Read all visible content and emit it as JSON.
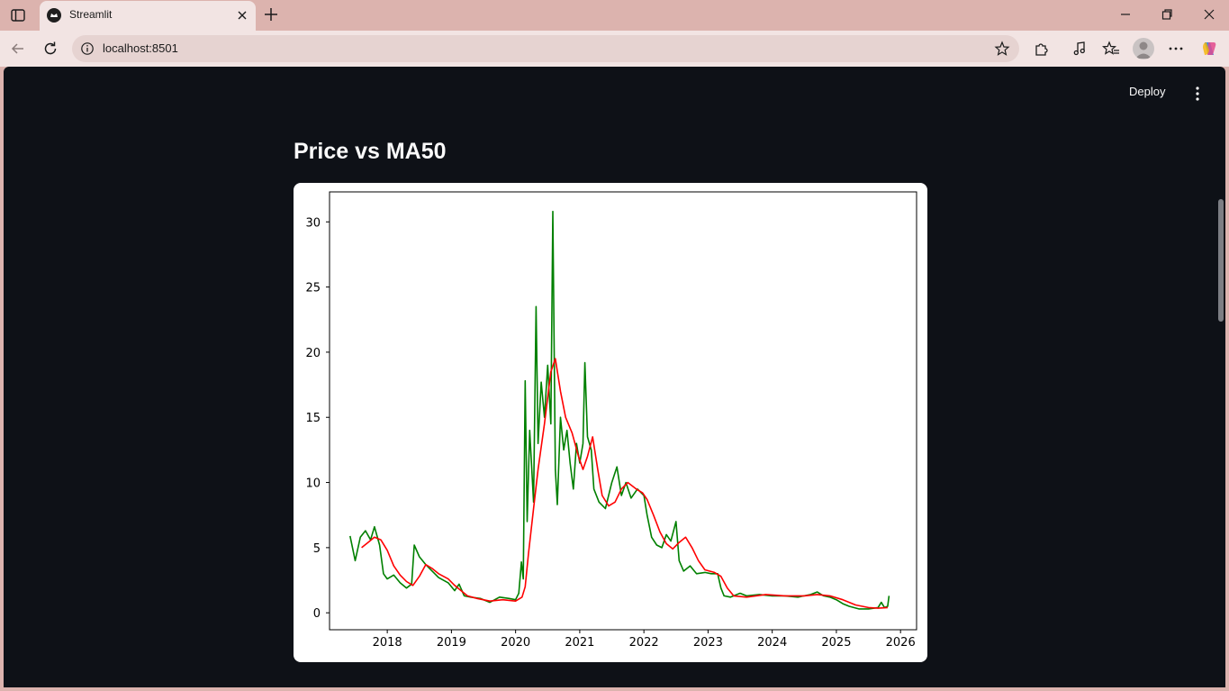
{
  "browser": {
    "tab_title": "Streamlit",
    "url": "localhost:8501"
  },
  "icons": {
    "sidebar_toggle": "sidebar-toggle-icon",
    "favicon": "streamlit-crown-icon",
    "tab_close": "close-icon",
    "new_tab": "plus-icon",
    "back": "arrow-left-icon",
    "reload": "reload-icon",
    "site_info": "info-icon",
    "favorite": "star-icon",
    "extensions": "puzzle-icon",
    "reading": "music-note-icon",
    "favorites": "favorites-icon",
    "profile": "avatar-icon",
    "more": "more-horizontal-icon",
    "copilot": "copilot-icon"
  },
  "app": {
    "deploy_label": "Deploy",
    "title": "Price vs MA50"
  },
  "colors": {
    "app_bg": "#0e1117",
    "price_line": "#008000",
    "ma_line": "#ff0000"
  },
  "chart_data": {
    "type": "line",
    "title": "",
    "xlabel": "",
    "ylabel": "",
    "xlim": [
      2017.1,
      2026.25
    ],
    "ylim": [
      -1.3,
      32.3
    ],
    "x_ticks": [
      "2018",
      "2019",
      "2020",
      "2021",
      "2022",
      "2023",
      "2024",
      "2025",
      "2026"
    ],
    "y_ticks": [
      "0",
      "5",
      "10",
      "15",
      "20",
      "25",
      "30"
    ],
    "grid": false,
    "legend": "none",
    "series": [
      {
        "color": "#008000",
        "points": [
          [
            2017.42,
            5.9
          ],
          [
            2017.5,
            4.0
          ],
          [
            2017.58,
            5.8
          ],
          [
            2017.66,
            6.3
          ],
          [
            2017.74,
            5.6
          ],
          [
            2017.8,
            6.6
          ],
          [
            2017.88,
            5.2
          ],
          [
            2017.94,
            3.0
          ],
          [
            2018.0,
            2.6
          ],
          [
            2018.1,
            2.9
          ],
          [
            2018.2,
            2.3
          ],
          [
            2018.3,
            1.9
          ],
          [
            2018.38,
            2.2
          ],
          [
            2018.42,
            5.2
          ],
          [
            2018.5,
            4.3
          ],
          [
            2018.6,
            3.7
          ],
          [
            2018.7,
            3.2
          ],
          [
            2018.8,
            2.7
          ],
          [
            2018.95,
            2.3
          ],
          [
            2019.05,
            1.7
          ],
          [
            2019.12,
            2.2
          ],
          [
            2019.2,
            1.3
          ],
          [
            2019.3,
            1.2
          ],
          [
            2019.45,
            1.1
          ],
          [
            2019.6,
            0.8
          ],
          [
            2019.75,
            1.2
          ],
          [
            2019.9,
            1.1
          ],
          [
            2020.0,
            1.0
          ],
          [
            2020.05,
            1.5
          ],
          [
            2020.09,
            3.9
          ],
          [
            2020.12,
            2.6
          ],
          [
            2020.15,
            17.8
          ],
          [
            2020.18,
            7.0
          ],
          [
            2020.22,
            14.0
          ],
          [
            2020.28,
            8.5
          ],
          [
            2020.32,
            23.5
          ],
          [
            2020.35,
            13.0
          ],
          [
            2020.4,
            17.7
          ],
          [
            2020.45,
            15.0
          ],
          [
            2020.5,
            19.0
          ],
          [
            2020.55,
            14.5
          ],
          [
            2020.58,
            30.8
          ],
          [
            2020.62,
            11.0
          ],
          [
            2020.65,
            8.3
          ],
          [
            2020.7,
            15.0
          ],
          [
            2020.75,
            12.5
          ],
          [
            2020.8,
            14.0
          ],
          [
            2020.85,
            11.5
          ],
          [
            2020.9,
            9.5
          ],
          [
            2020.95,
            13.0
          ],
          [
            2021.0,
            11.5
          ],
          [
            2021.05,
            13.0
          ],
          [
            2021.08,
            19.2
          ],
          [
            2021.12,
            13.5
          ],
          [
            2021.18,
            12.5
          ],
          [
            2021.22,
            9.5
          ],
          [
            2021.3,
            8.5
          ],
          [
            2021.4,
            8.0
          ],
          [
            2021.5,
            10.0
          ],
          [
            2021.58,
            11.2
          ],
          [
            2021.65,
            9.0
          ],
          [
            2021.72,
            10.0
          ],
          [
            2021.8,
            8.8
          ],
          [
            2021.9,
            9.5
          ],
          [
            2022.0,
            9.0
          ],
          [
            2022.05,
            7.5
          ],
          [
            2022.12,
            5.8
          ],
          [
            2022.2,
            5.2
          ],
          [
            2022.28,
            5.0
          ],
          [
            2022.35,
            6.0
          ],
          [
            2022.42,
            5.5
          ],
          [
            2022.5,
            7.0
          ],
          [
            2022.55,
            4.0
          ],
          [
            2022.62,
            3.2
          ],
          [
            2022.72,
            3.6
          ],
          [
            2022.82,
            3.0
          ],
          [
            2022.95,
            3.1
          ],
          [
            2023.05,
            3.0
          ],
          [
            2023.15,
            3.0
          ],
          [
            2023.2,
            1.9
          ],
          [
            2023.25,
            1.3
          ],
          [
            2023.35,
            1.2
          ],
          [
            2023.5,
            1.5
          ],
          [
            2023.6,
            1.3
          ],
          [
            2023.8,
            1.4
          ],
          [
            2024.0,
            1.3
          ],
          [
            2024.2,
            1.3
          ],
          [
            2024.4,
            1.2
          ],
          [
            2024.6,
            1.4
          ],
          [
            2024.7,
            1.6
          ],
          [
            2024.8,
            1.3
          ],
          [
            2024.9,
            1.2
          ],
          [
            2025.0,
            1.0
          ],
          [
            2025.1,
            0.7
          ],
          [
            2025.2,
            0.5
          ],
          [
            2025.35,
            0.3
          ],
          [
            2025.5,
            0.3
          ],
          [
            2025.65,
            0.4
          ],
          [
            2025.7,
            0.8
          ],
          [
            2025.75,
            0.4
          ],
          [
            2025.8,
            0.5
          ],
          [
            2025.82,
            1.3
          ]
        ]
      },
      {
        "color": "#ff0000",
        "points": [
          [
            2017.6,
            5.0
          ],
          [
            2017.7,
            5.4
          ],
          [
            2017.8,
            5.8
          ],
          [
            2017.9,
            5.6
          ],
          [
            2018.0,
            4.8
          ],
          [
            2018.1,
            3.6
          ],
          [
            2018.2,
            2.9
          ],
          [
            2018.3,
            2.4
          ],
          [
            2018.4,
            2.1
          ],
          [
            2018.5,
            2.8
          ],
          [
            2018.6,
            3.7
          ],
          [
            2018.7,
            3.4
          ],
          [
            2018.8,
            3.0
          ],
          [
            2018.95,
            2.6
          ],
          [
            2019.05,
            2.1
          ],
          [
            2019.15,
            1.7
          ],
          [
            2019.25,
            1.3
          ],
          [
            2019.4,
            1.1
          ],
          [
            2019.6,
            0.9
          ],
          [
            2019.8,
            1.0
          ],
          [
            2020.0,
            0.9
          ],
          [
            2020.1,
            1.2
          ],
          [
            2020.15,
            2.0
          ],
          [
            2020.2,
            4.5
          ],
          [
            2020.28,
            8.0
          ],
          [
            2020.35,
            11.0
          ],
          [
            2020.45,
            14.5
          ],
          [
            2020.55,
            18.5
          ],
          [
            2020.62,
            19.5
          ],
          [
            2020.7,
            17.0
          ],
          [
            2020.78,
            15.0
          ],
          [
            2020.88,
            13.8
          ],
          [
            2020.98,
            12.0
          ],
          [
            2021.05,
            11.0
          ],
          [
            2021.12,
            12.0
          ],
          [
            2021.2,
            13.5
          ],
          [
            2021.28,
            11.0
          ],
          [
            2021.35,
            9.0
          ],
          [
            2021.45,
            8.2
          ],
          [
            2021.55,
            8.5
          ],
          [
            2021.65,
            9.5
          ],
          [
            2021.75,
            10.0
          ],
          [
            2021.88,
            9.5
          ],
          [
            2021.98,
            9.2
          ],
          [
            2022.05,
            8.7
          ],
          [
            2022.15,
            7.5
          ],
          [
            2022.25,
            6.2
          ],
          [
            2022.35,
            5.3
          ],
          [
            2022.45,
            4.9
          ],
          [
            2022.55,
            5.4
          ],
          [
            2022.65,
            5.8
          ],
          [
            2022.75,
            5.0
          ],
          [
            2022.85,
            4.0
          ],
          [
            2022.95,
            3.3
          ],
          [
            2023.1,
            3.1
          ],
          [
            2023.2,
            2.8
          ],
          [
            2023.3,
            1.9
          ],
          [
            2023.4,
            1.3
          ],
          [
            2023.6,
            1.2
          ],
          [
            2023.9,
            1.4
          ],
          [
            2024.2,
            1.3
          ],
          [
            2024.5,
            1.3
          ],
          [
            2024.7,
            1.4
          ],
          [
            2024.9,
            1.3
          ],
          [
            2025.1,
            1.0
          ],
          [
            2025.3,
            0.6
          ],
          [
            2025.5,
            0.4
          ],
          [
            2025.65,
            0.35
          ],
          [
            2025.8,
            0.4
          ]
        ]
      }
    ]
  }
}
